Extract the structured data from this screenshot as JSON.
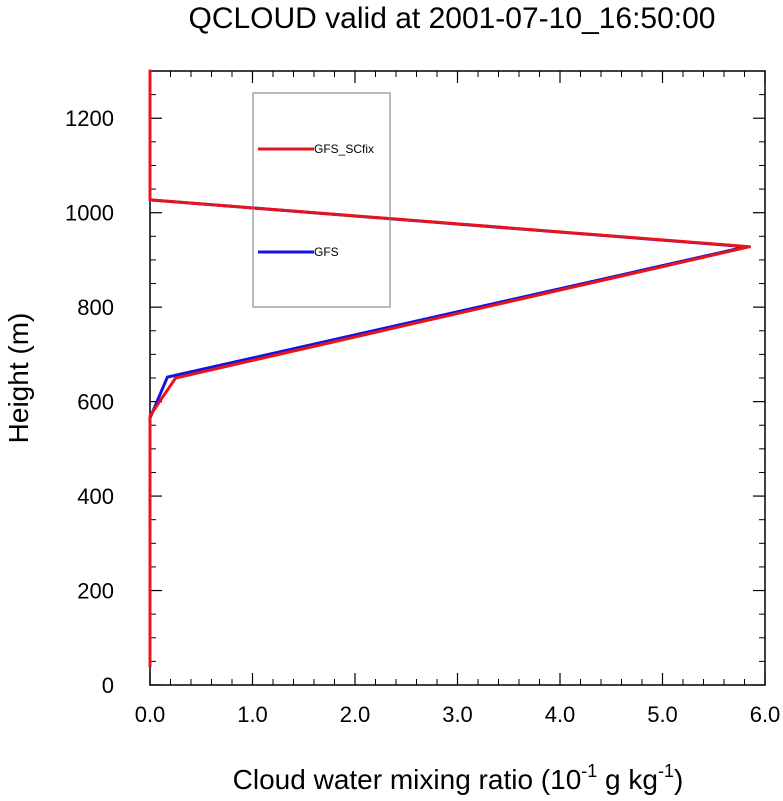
{
  "chart_data": {
    "type": "line",
    "title": "QCLOUD valid at 2001-07-10_16:50:00",
    "xlabel": {
      "base": "Cloud water mixing ratio (10",
      "exp1": "-1",
      "mid": " g kg",
      "exp2": "-1",
      "end": ")"
    },
    "ylabel": "Height (m)",
    "xlim": [
      0,
      6
    ],
    "ylim": [
      0,
      1300
    ],
    "xticks": [
      0,
      1,
      2,
      3,
      4,
      5,
      6
    ],
    "xtick_labels": [
      "0.0",
      "1.0",
      "2.0",
      "3.0",
      "4.0",
      "5.0",
      "6.0"
    ],
    "yticks": [
      0,
      200,
      400,
      600,
      800,
      1000,
      1200
    ],
    "ytick_labels": [
      "0",
      "200",
      "400",
      "600",
      "800",
      "1000",
      "1200"
    ],
    "legend_placement": "top-left",
    "series": [
      {
        "name": "GFS_SCfix",
        "color": "#e8141c",
        "x": [
          0,
          0,
          0,
          0,
          0.25,
          5.85,
          0,
          0
        ],
        "y": [
          40,
          300,
          550,
          570,
          650,
          928,
          1027,
          1300
        ]
      },
      {
        "name": "GFS",
        "color": "#1414e0",
        "x": [
          0,
          0,
          0,
          0,
          0.17,
          5.82,
          0,
          0
        ],
        "y": [
          40,
          300,
          550,
          565,
          652,
          928,
          1027,
          1300
        ]
      }
    ]
  }
}
